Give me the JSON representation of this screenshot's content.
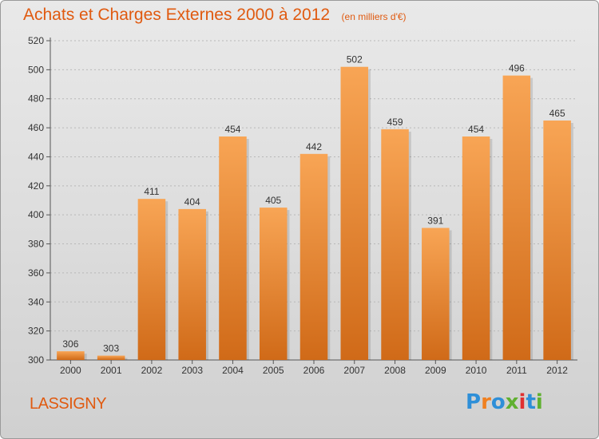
{
  "header": {
    "title": "Achats et Charges Externes 2000 à 2012",
    "subtitle": "(en milliers d'€)"
  },
  "footer": {
    "place": "LASSIGNY",
    "logo": {
      "letters": [
        "P",
        "r",
        "o",
        "x",
        "i",
        "t",
        "i"
      ],
      "colors": [
        "#2e8fd8",
        "#f08020",
        "#2e8fd8",
        "#60b030",
        "#e03030",
        "#2e8fd8",
        "#60b030"
      ]
    }
  },
  "chart_data": {
    "type": "bar",
    "categories": [
      "2000",
      "2001",
      "2002",
      "2003",
      "2004",
      "2005",
      "2006",
      "2007",
      "2008",
      "2009",
      "2010",
      "2011",
      "2012"
    ],
    "values": [
      306,
      303,
      411,
      404,
      454,
      405,
      442,
      502,
      459,
      391,
      454,
      496,
      465
    ],
    "ylim": [
      300,
      520
    ],
    "yticks": [
      300,
      320,
      340,
      360,
      380,
      400,
      420,
      440,
      460,
      480,
      500,
      520
    ],
    "grid": true,
    "colors": {
      "bar_top": "#f8a555",
      "bar_bottom": "#d06a18",
      "grid": "#b8b8b8",
      "text": "#333333"
    }
  }
}
